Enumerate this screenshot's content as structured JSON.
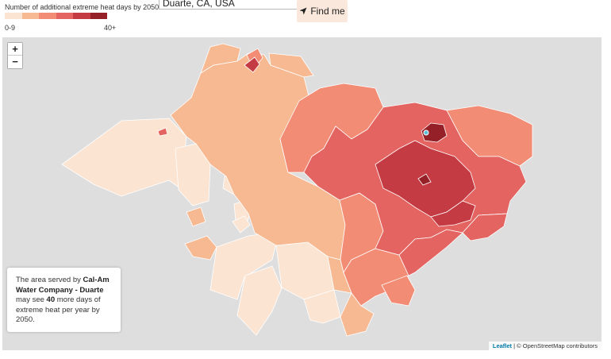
{
  "legend": {
    "title": "Number of additional extreme heat days by 2050",
    "min_label": "0-9",
    "max_label": "40+",
    "colors": [
      "#fbe4d2",
      "#f7b991",
      "#f28c75",
      "#e36460",
      "#c43b43",
      "#962028"
    ]
  },
  "search": {
    "value": "Duarte, CA, USA"
  },
  "find_button": {
    "label": "Find me",
    "icon": "location-arrow-icon"
  },
  "map": {
    "background_color": "#dedede",
    "zoom_in_label": "+",
    "zoom_out_label": "−"
  },
  "info": {
    "prefix": "The area served by ",
    "provider": "Cal-Am Water Company - Duarte",
    "middle": " may see ",
    "days": "40",
    "suffix": " more days of extreme heat per year by 2050."
  },
  "attribution": {
    "leaflet": "Leaflet",
    "separator": " | © ",
    "osm": "OpenStreetMap contributors"
  }
}
